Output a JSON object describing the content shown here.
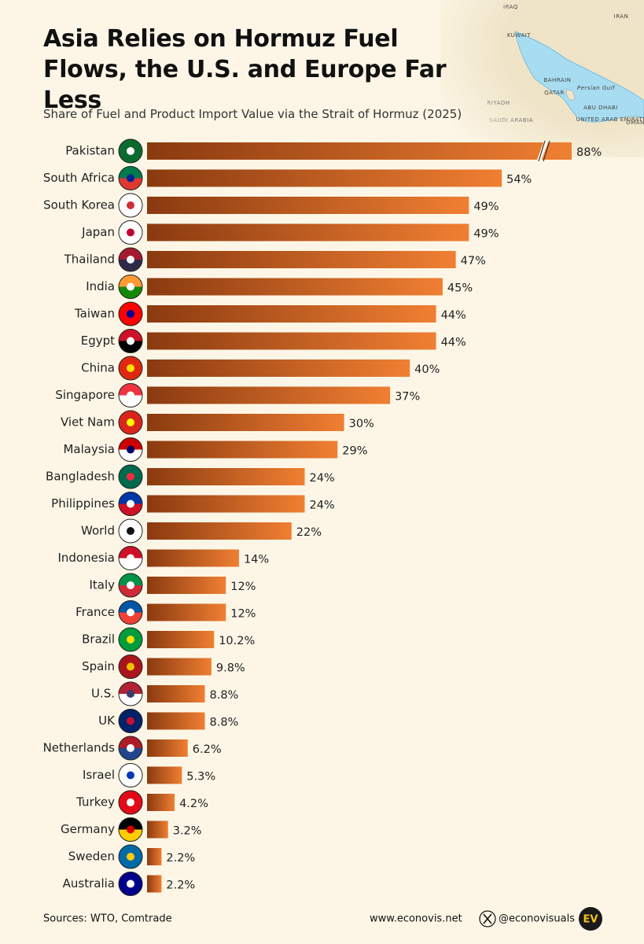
{
  "chart_data": {
    "type": "bar",
    "orientation": "horizontal",
    "title": "Asia Relies on Hormuz Fuel Flows, the U.S. and Europe Far Less",
    "subtitle": "Share of Fuel and Product Import Value via the Strait of Hormuz (2025)",
    "categories": [
      "Pakistan",
      "South Africa",
      "South Korea",
      "Japan",
      "Thailand",
      "India",
      "Taiwan",
      "Egypt",
      "China",
      "Singapore",
      "Viet Nam",
      "Malaysia",
      "Bangladesh",
      "Philippines",
      "World",
      "Indonesia",
      "Italy",
      "France",
      "Brazil",
      "Spain",
      "U.S.",
      "UK",
      "Netherlands",
      "Israel",
      "Turkey",
      "Germany",
      "Sweden",
      "Australia"
    ],
    "values": [
      88,
      54,
      49,
      49,
      47,
      45,
      44,
      44,
      40,
      37,
      30,
      29,
      24,
      24,
      22,
      14,
      12,
      12,
      10.2,
      9.8,
      8.8,
      8.8,
      6.2,
      5.3,
      4.2,
      3.2,
      2.2,
      2.2
    ],
    "value_labels": [
      "88%",
      "54%",
      "49%",
      "49%",
      "47%",
      "45%",
      "44%",
      "44%",
      "40%",
      "37%",
      "30%",
      "29%",
      "24%",
      "24%",
      "22%",
      "14%",
      "12%",
      "12%",
      "10.2%",
      "9.8%",
      "8.8%",
      "8.8%",
      "6.2%",
      "5.3%",
      "4.2%",
      "3.2%",
      "2.2%",
      "2.2%"
    ],
    "color_start": "#8a3a10",
    "color_end": "#f07f32",
    "xlim": [
      0,
      65
    ],
    "grid": false,
    "axis_break": true
  },
  "map_labels": [
    "IRAQ",
    "IRAN",
    "KUWAIT",
    "BAHRAIN",
    "QATAR",
    "Persian Gulf",
    "RIYADH",
    "SAUDI ARABIA",
    "ABU DHABI",
    "UNITED ARAB EMIRATES",
    "OMAN"
  ],
  "footer": {
    "source": "Sources: WTO, Comtrade",
    "website": "www.econovis.net",
    "handle": "@econovisuals",
    "logo": "EV"
  }
}
